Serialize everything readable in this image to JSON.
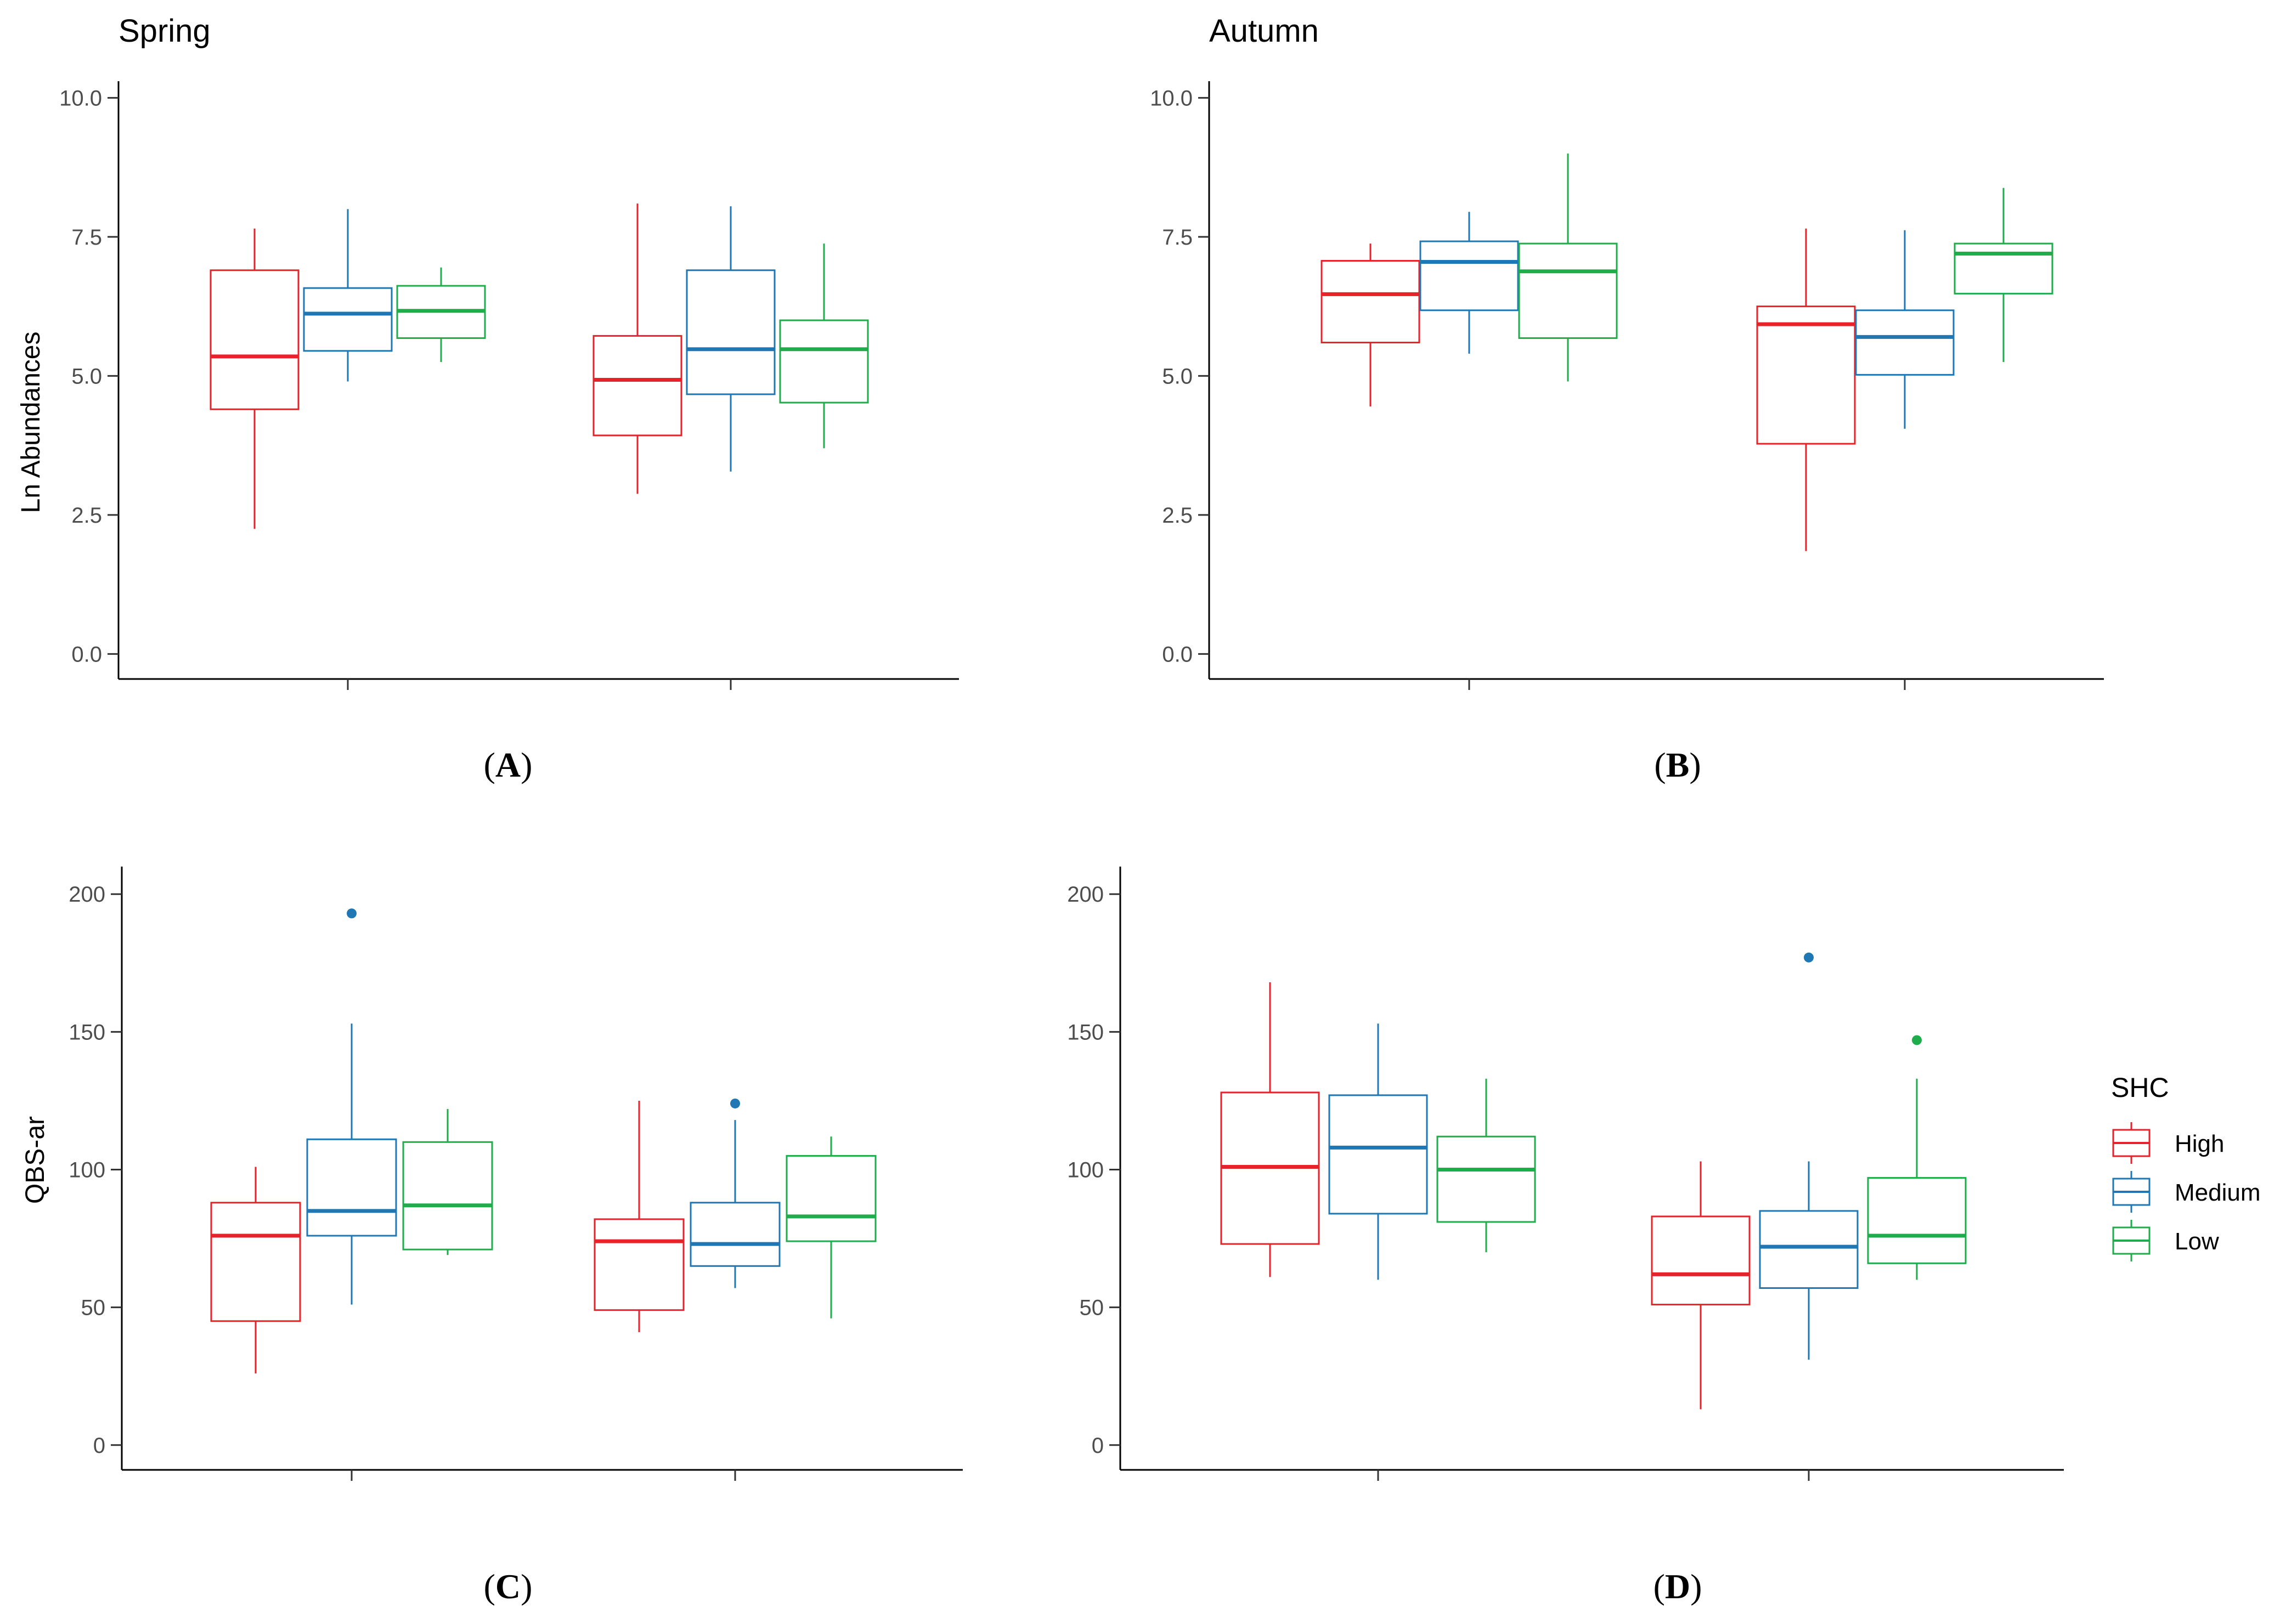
{
  "legend": {
    "title": "SHC",
    "entries": [
      {
        "key": "high",
        "label": "High",
        "color": "#E8222A"
      },
      {
        "key": "medium",
        "label": "Medium",
        "color": "#1F78B4"
      },
      {
        "key": "low",
        "label": "Low",
        "color": "#1FAD4B"
      }
    ]
  },
  "captions": {
    "A": {
      "open": "(",
      "letter": "A",
      "close": ")"
    },
    "B": {
      "open": "(",
      "letter": "B",
      "close": ")"
    },
    "C": {
      "open": "(",
      "letter": "C",
      "close": ")"
    },
    "D": {
      "open": "(",
      "letter": "D",
      "close": ")"
    }
  },
  "chart_data": [
    {
      "id": "A",
      "type": "box",
      "title": "Spring",
      "xlabel": "",
      "ylabel": "Ln Abundances",
      "ylim": [
        -0.45,
        10.3
      ],
      "yticks": [
        0.0,
        2.5,
        5.0,
        7.5,
        10.0
      ],
      "ytick_labels": [
        "0.0",
        "2.5",
        "5.0",
        "7.5",
        "10.0"
      ],
      "groups": 2,
      "grid": false,
      "boxes": [
        {
          "group": 1,
          "series": "high",
          "min": 2.25,
          "q1": 4.4,
          "median": 5.35,
          "q3": 6.9,
          "max": 7.65,
          "outliers": []
        },
        {
          "group": 1,
          "series": "medium",
          "min": 4.9,
          "q1": 5.45,
          "median": 6.12,
          "q3": 6.58,
          "max": 8.0,
          "outliers": []
        },
        {
          "group": 1,
          "series": "low",
          "min": 5.25,
          "q1": 5.68,
          "median": 6.17,
          "q3": 6.62,
          "max": 6.95,
          "outliers": []
        },
        {
          "group": 2,
          "series": "high",
          "min": 2.88,
          "q1": 3.93,
          "median": 4.93,
          "q3": 5.72,
          "max": 8.1,
          "outliers": []
        },
        {
          "group": 2,
          "series": "medium",
          "min": 3.28,
          "q1": 4.67,
          "median": 5.48,
          "q3": 6.9,
          "max": 8.05,
          "outliers": []
        },
        {
          "group": 2,
          "series": "low",
          "min": 3.7,
          "q1": 4.52,
          "median": 5.48,
          "q3": 6.0,
          "max": 7.38,
          "outliers": []
        }
      ]
    },
    {
      "id": "B",
      "type": "box",
      "title": "Autumn",
      "xlabel": "",
      "ylabel": "",
      "ylim": [
        -0.45,
        10.3
      ],
      "yticks": [
        0.0,
        2.5,
        5.0,
        7.5,
        10.0
      ],
      "ytick_labels": [
        "0.0",
        "2.5",
        "5.0",
        "7.5",
        "10.0"
      ],
      "groups": 2,
      "grid": false,
      "boxes": [
        {
          "group": 1,
          "series": "high",
          "min": 4.45,
          "q1": 5.6,
          "median": 6.47,
          "q3": 7.07,
          "max": 7.38,
          "outliers": []
        },
        {
          "group": 1,
          "series": "medium",
          "min": 5.4,
          "q1": 6.18,
          "median": 7.05,
          "q3": 7.42,
          "max": 7.95,
          "outliers": []
        },
        {
          "group": 1,
          "series": "low",
          "min": 4.9,
          "q1": 5.68,
          "median": 6.88,
          "q3": 7.38,
          "max": 9.0,
          "outliers": []
        },
        {
          "group": 2,
          "series": "high",
          "min": 1.85,
          "q1": 3.78,
          "median": 5.93,
          "q3": 6.25,
          "max": 7.65,
          "outliers": []
        },
        {
          "group": 2,
          "series": "medium",
          "min": 4.05,
          "q1": 5.02,
          "median": 5.7,
          "q3": 6.18,
          "max": 7.62,
          "outliers": []
        },
        {
          "group": 2,
          "series": "low",
          "min": 5.25,
          "q1": 6.48,
          "median": 7.2,
          "q3": 7.38,
          "max": 8.38,
          "outliers": []
        }
      ]
    },
    {
      "id": "C",
      "type": "box",
      "title": "",
      "xlabel": "",
      "ylabel": "QBS-ar",
      "ylim": [
        -9,
        210
      ],
      "yticks": [
        0,
        50,
        100,
        150,
        200
      ],
      "ytick_labels": [
        "0",
        "50",
        "100",
        "150",
        "200"
      ],
      "groups": 2,
      "grid": false,
      "boxes": [
        {
          "group": 1,
          "series": "high",
          "min": 26,
          "q1": 45,
          "median": 76,
          "q3": 88,
          "max": 101,
          "outliers": []
        },
        {
          "group": 1,
          "series": "medium",
          "min": 51,
          "q1": 76,
          "median": 85,
          "q3": 111,
          "max": 153,
          "outliers": [
            193
          ]
        },
        {
          "group": 1,
          "series": "low",
          "min": 69,
          "q1": 71,
          "median": 87,
          "q3": 110,
          "max": 122,
          "outliers": []
        },
        {
          "group": 2,
          "series": "high",
          "min": 41,
          "q1": 49,
          "median": 74,
          "q3": 82,
          "max": 125,
          "outliers": []
        },
        {
          "group": 2,
          "series": "medium",
          "min": 57,
          "q1": 65,
          "median": 73,
          "q3": 88,
          "max": 118,
          "outliers": [
            124
          ]
        },
        {
          "group": 2,
          "series": "low",
          "min": 46,
          "q1": 74,
          "median": 83,
          "q3": 105,
          "max": 112,
          "outliers": []
        }
      ]
    },
    {
      "id": "D",
      "type": "box",
      "title": "",
      "xlabel": "",
      "ylabel": "",
      "ylim": [
        -9,
        210
      ],
      "yticks": [
        0,
        50,
        100,
        150,
        200
      ],
      "ytick_labels": [
        "0",
        "50",
        "100",
        "150",
        "200"
      ],
      "groups": 2,
      "grid": false,
      "boxes": [
        {
          "group": 1,
          "series": "high",
          "min": 61,
          "q1": 73,
          "median": 101,
          "q3": 128,
          "max": 168,
          "outliers": []
        },
        {
          "group": 1,
          "series": "medium",
          "min": 60,
          "q1": 84,
          "median": 108,
          "q3": 127,
          "max": 153,
          "outliers": []
        },
        {
          "group": 1,
          "series": "low",
          "min": 70,
          "q1": 81,
          "median": 100,
          "q3": 112,
          "max": 133,
          "outliers": []
        },
        {
          "group": 2,
          "series": "high",
          "min": 13,
          "q1": 51,
          "median": 62,
          "q3": 83,
          "max": 103,
          "outliers": []
        },
        {
          "group": 2,
          "series": "medium",
          "min": 31,
          "q1": 57,
          "median": 72,
          "q3": 85,
          "max": 103,
          "outliers": [
            177
          ]
        },
        {
          "group": 2,
          "series": "low",
          "min": 60,
          "q1": 66,
          "median": 76,
          "q3": 97,
          "max": 133,
          "outliers": [
            147
          ]
        }
      ]
    }
  ]
}
